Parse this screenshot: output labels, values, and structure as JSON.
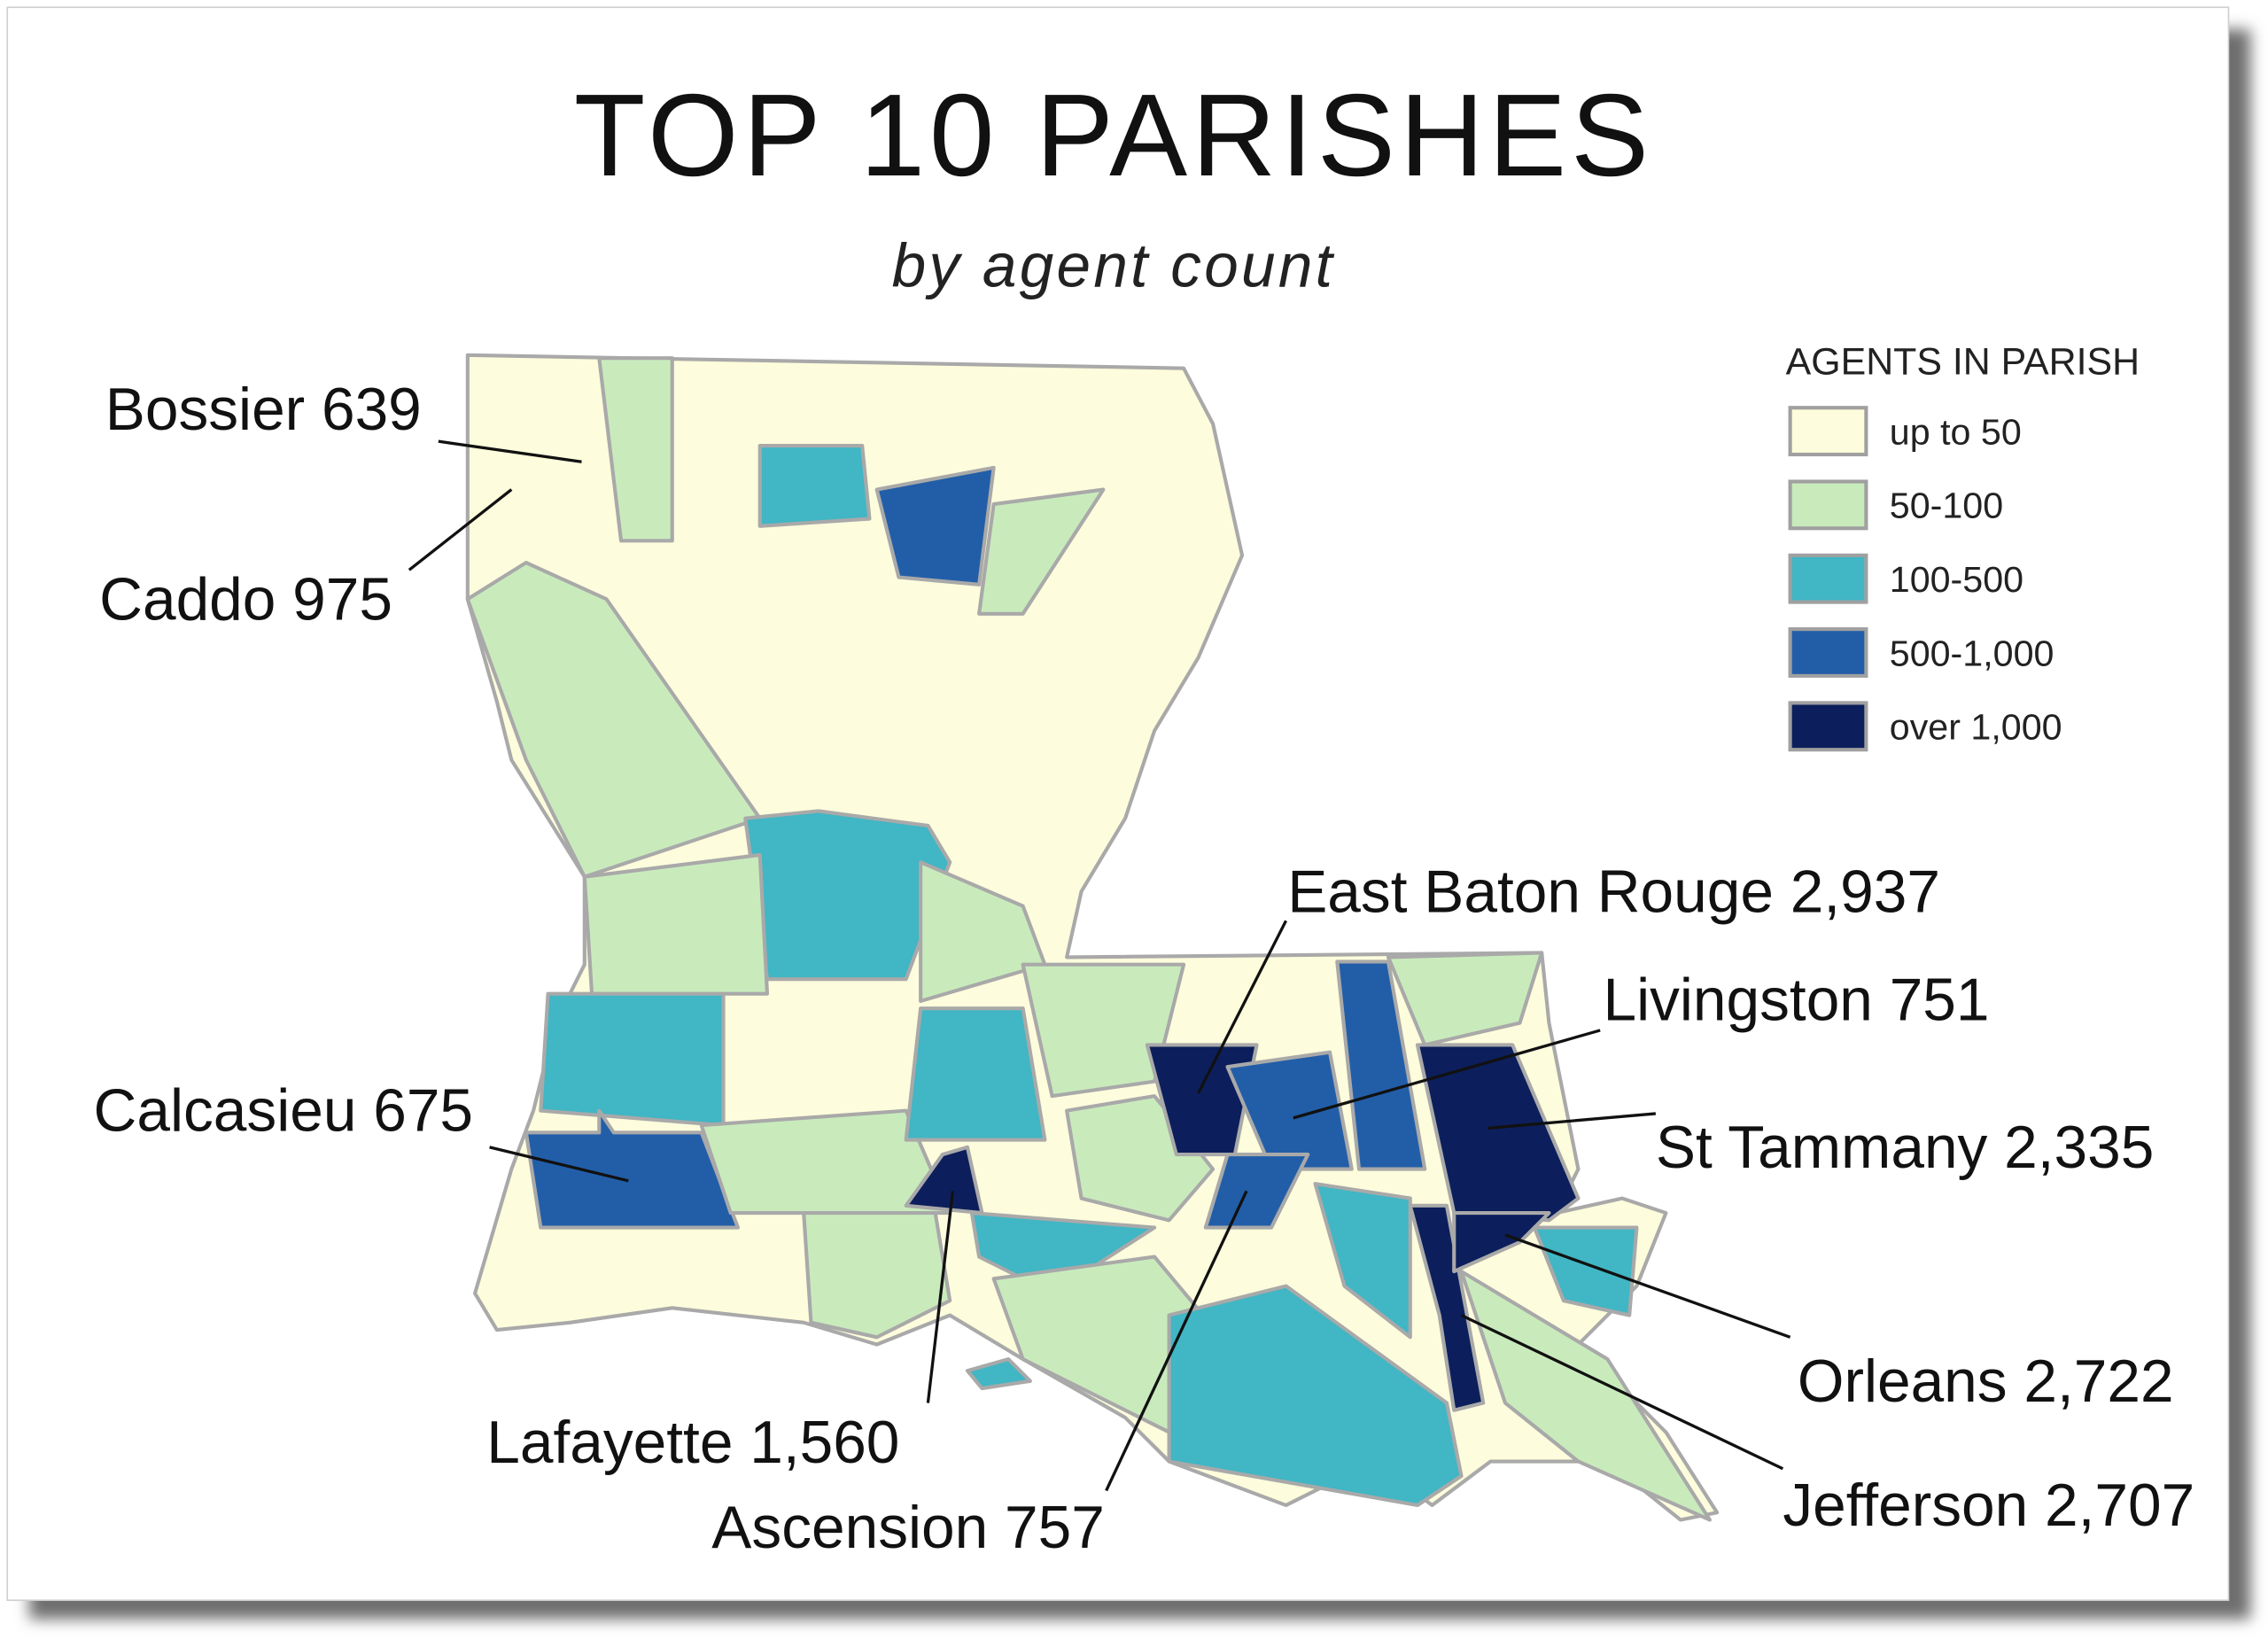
{
  "title": "TOP 10 PARISHES",
  "subtitle": "by agent count",
  "legend": {
    "title": "AGENTS IN PARISH",
    "items": [
      {
        "label": "up to 50",
        "color": "#fdfcdc"
      },
      {
        "label": "50-100",
        "color": "#c9ebbc"
      },
      {
        "label": "100-500",
        "color": "#41b6c4"
      },
      {
        "label": "500-1,000",
        "color": "#225ea8"
      },
      {
        "label": "over 1,000",
        "color": "#0c1f5c"
      }
    ]
  },
  "labels": [
    "Bossier 639",
    "Caddo 975",
    "Calcasieu 675",
    "Lafayette 1,560",
    "Ascension 757",
    "East Baton Rouge 2,937",
    "Livingston 751",
    "St Tammany 2,335",
    "Orleans 2,722",
    "Jefferson 2,707"
  ]
}
